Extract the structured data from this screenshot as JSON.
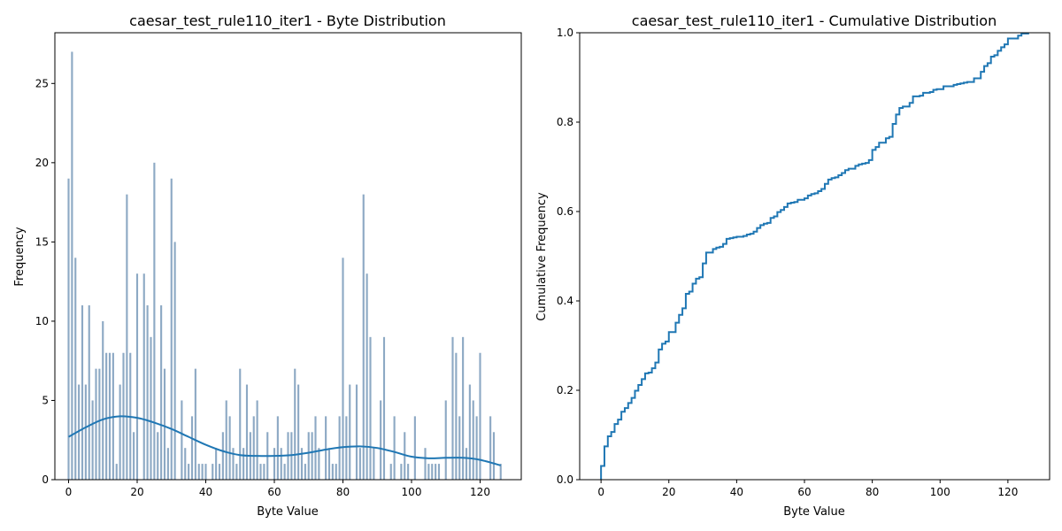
{
  "chart_data": [
    {
      "type": "bar",
      "title": "caesar_test_rule110_iter1 - Byte Distribution",
      "xlabel": "Byte Value",
      "ylabel": "Frequency",
      "xlim": [
        -4,
        132
      ],
      "ylim": [
        0,
        28.2
      ],
      "xticks": [
        0,
        20,
        40,
        60,
        80,
        100,
        120
      ],
      "yticks": [
        0,
        5,
        10,
        15,
        20,
        25
      ],
      "bar_color": "#8DA9C4",
      "kde_color": "#1F77B4",
      "x": [
        0,
        1,
        2,
        3,
        4,
        5,
        6,
        7,
        8,
        9,
        10,
        11,
        12,
        13,
        14,
        15,
        16,
        17,
        18,
        19,
        20,
        21,
        22,
        23,
        24,
        25,
        26,
        27,
        28,
        29,
        30,
        31,
        32,
        33,
        34,
        35,
        36,
        37,
        38,
        39,
        40,
        41,
        42,
        43,
        44,
        45,
        46,
        47,
        48,
        49,
        50,
        51,
        52,
        53,
        54,
        55,
        56,
        57,
        58,
        59,
        60,
        61,
        62,
        63,
        64,
        65,
        66,
        67,
        68,
        69,
        70,
        71,
        72,
        73,
        74,
        75,
        76,
        77,
        78,
        79,
        80,
        81,
        82,
        83,
        84,
        85,
        86,
        87,
        88,
        89,
        90,
        91,
        92,
        93,
        94,
        95,
        96,
        97,
        98,
        99,
        100,
        101,
        102,
        103,
        104,
        105,
        106,
        107,
        108,
        109,
        110,
        111,
        112,
        113,
        114,
        115,
        116,
        117,
        118,
        119,
        120,
        121,
        122,
        123,
        124,
        125,
        126
      ],
      "values": [
        19,
        27,
        14,
        6,
        11,
        6,
        11,
        5,
        7,
        7,
        10,
        8,
        8,
        8,
        1,
        6,
        8,
        18,
        8,
        3,
        13,
        0,
        13,
        11,
        9,
        20,
        3,
        11,
        7,
        2,
        19,
        15,
        0,
        5,
        2,
        1,
        4,
        7,
        1,
        1,
        1,
        0,
        1,
        2,
        1,
        3,
        5,
        4,
        2,
        1,
        7,
        2,
        6,
        3,
        4,
        5,
        1,
        1,
        3,
        0,
        2,
        4,
        2,
        1,
        3,
        3,
        7,
        6,
        2,
        1,
        3,
        3,
        4,
        2,
        0,
        4,
        2,
        1,
        1,
        4,
        14,
        4,
        6,
        0,
        6,
        2,
        18,
        13,
        9,
        2,
        0,
        5,
        9,
        0,
        1,
        4,
        0,
        1,
        3,
        1,
        0,
        4,
        0,
        0,
        2,
        1,
        1,
        1,
        1,
        0,
        5,
        0,
        9,
        8,
        4,
        9,
        2,
        6,
        5,
        4,
        8,
        0,
        0,
        4,
        3,
        0,
        1
      ],
      "kde": {
        "x": [
          0,
          5,
          10,
          15,
          20,
          25,
          30,
          35,
          40,
          45,
          50,
          55,
          60,
          65,
          70,
          75,
          80,
          85,
          90,
          95,
          100,
          105,
          110,
          115,
          120,
          126
        ],
        "y": [
          2.7,
          3.3,
          3.8,
          4.0,
          3.9,
          3.6,
          3.2,
          2.7,
          2.2,
          1.8,
          1.55,
          1.5,
          1.5,
          1.55,
          1.7,
          1.9,
          2.05,
          2.1,
          2.0,
          1.75,
          1.45,
          1.35,
          1.38,
          1.38,
          1.25,
          0.9
        ]
      }
    },
    {
      "type": "line",
      "title": "caesar_test_rule110_iter1 - Cumulative Distribution",
      "xlabel": "Byte Value",
      "ylabel": "Cumulative Frequency",
      "xlim": [
        -6.3,
        132.3
      ],
      "ylim": [
        0,
        1.0
      ],
      "xticks": [
        0,
        20,
        40,
        60,
        80,
        100,
        120
      ],
      "yticks": [
        "0.0",
        "0.2",
        "0.4",
        "0.6",
        "0.8",
        "1.0"
      ],
      "color": "#1F77B4",
      "step": true
    }
  ]
}
